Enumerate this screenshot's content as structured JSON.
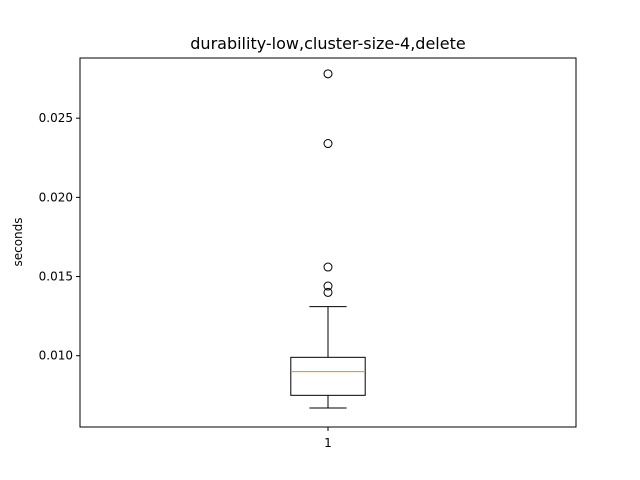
{
  "chart_data": {
    "type": "box",
    "title": "durability-low,cluster-size-4,delete",
    "xlabel": "",
    "ylabel": "seconds",
    "categories": [
      "1"
    ],
    "ylim": [
      0.0055,
      0.0288
    ],
    "yticks": [
      0.01,
      0.015,
      0.02,
      0.025
    ],
    "ytick_labels": [
      "0.010",
      "0.015",
      "0.020",
      "0.025"
    ],
    "grid": false,
    "boxes": [
      {
        "category": "1",
        "whisker_low": 0.0067,
        "q1": 0.0075,
        "median": 0.009,
        "q3": 0.0099,
        "whisker_high": 0.0131,
        "outliers": [
          0.014,
          0.0144,
          0.0156,
          0.0234,
          0.0278
        ]
      }
    ],
    "colors": {
      "box": "#000000",
      "median": "#ff7f0e",
      "outlier": "#000000"
    }
  }
}
